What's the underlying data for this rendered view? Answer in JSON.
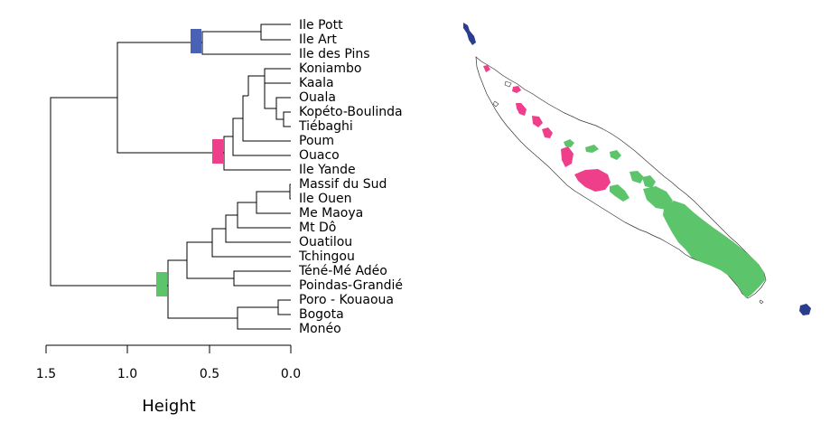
{
  "dendrogram": {
    "leaves": [
      "Ile Pott",
      "Ile Art",
      "Ile des Pins",
      "Koniambo",
      "Kaala",
      "Ouala",
      "Kopéto-Boulinda",
      "Tiébaghi",
      "Poum",
      "Ouaco",
      "Ile Yande",
      "Massif du Sud",
      "Ile Ouen",
      "Me Maoya",
      "Mt Dô",
      "Ouatilou",
      "Tchingou",
      "Téné-Mé Adéo",
      "Poindas-Grandié",
      "Poro - Kouaoua",
      "Bogota",
      "Monéo"
    ],
    "axis": {
      "title": "Height",
      "ticks": [
        "1.5",
        "1.0",
        "0.5",
        "0.0"
      ]
    },
    "groups": [
      {
        "name": "blue",
        "color": "#4a62b5"
      },
      {
        "name": "pink",
        "color": "#ef3e8a"
      },
      {
        "name": "green",
        "color": "#5cc46b"
      }
    ]
  },
  "map": {
    "land_outline_color": "#333333",
    "colors": {
      "blue": "#2b3d8f",
      "pink": "#ef3e8a",
      "green": "#5cc46b"
    }
  }
}
